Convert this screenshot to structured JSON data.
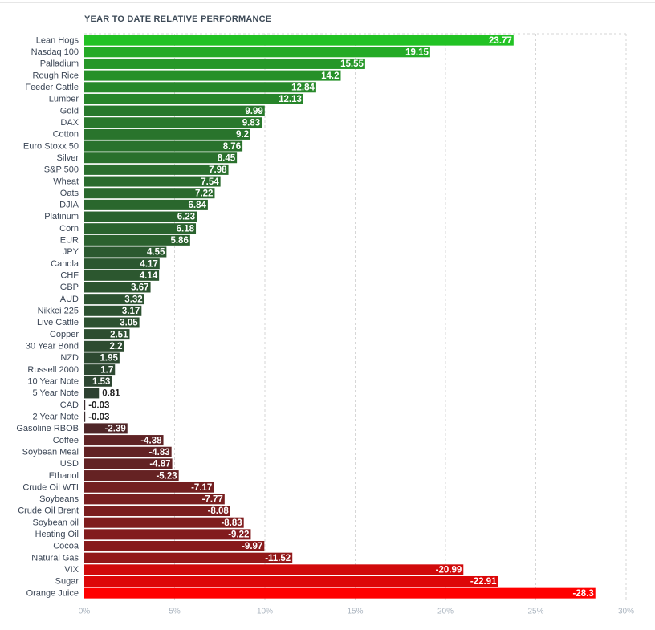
{
  "chart_data": {
    "type": "bar",
    "orientation": "horizontal",
    "title": "YEAR TO DATE RELATIVE PERFORMANCE",
    "categories": [
      "Lean Hogs",
      "Nasdaq 100",
      "Palladium",
      "Rough Rice",
      "Feeder Cattle",
      "Lumber",
      "Gold",
      "DAX",
      "Cotton",
      "Euro Stoxx 50",
      "Silver",
      "S&P 500",
      "Wheat",
      "Oats",
      "DJIA",
      "Platinum",
      "Corn",
      "EUR",
      "JPY",
      "Canola",
      "CHF",
      "GBP",
      "AUD",
      "Nikkei 225",
      "Live Cattle",
      "Copper",
      "30 Year Bond",
      "NZD",
      "Russell 2000",
      "10 Year Note",
      "5 Year Note",
      "CAD",
      "2 Year Note",
      "Gasoline RBOB",
      "Coffee",
      "Soybean Meal",
      "USD",
      "Ethanol",
      "Crude Oil WTI",
      "Soybeans",
      "Crude Oil Brent",
      "Soybean oil",
      "Heating Oil",
      "Cocoa",
      "Natural Gas",
      "VIX",
      "Sugar",
      "Orange Juice"
    ],
    "values": [
      23.77,
      19.15,
      15.55,
      14.2,
      12.84,
      12.13,
      9.99,
      9.83,
      9.2,
      8.76,
      8.45,
      7.98,
      7.54,
      7.22,
      6.84,
      6.23,
      6.18,
      5.86,
      4.55,
      4.17,
      4.14,
      3.67,
      3.32,
      3.17,
      3.05,
      2.51,
      2.2,
      1.95,
      1.7,
      1.53,
      0.81,
      -0.03,
      -0.03,
      -2.39,
      -4.38,
      -4.83,
      -4.87,
      -5.23,
      -7.17,
      -7.77,
      -8.08,
      -8.83,
      -9.22,
      -9.97,
      -11.52,
      -20.99,
      -22.91,
      -28.3
    ],
    "value_labels": [
      "23.77",
      "19.15",
      "15.55",
      "14.2",
      "12.84",
      "12.13",
      "9.99",
      "9.83",
      "9.2",
      "8.76",
      "8.45",
      "7.98",
      "7.54",
      "7.22",
      "6.84",
      "6.23",
      "6.18",
      "5.86",
      "4.55",
      "4.17",
      "4.14",
      "3.67",
      "3.32",
      "3.17",
      "3.05",
      "2.51",
      "2.2",
      "1.95",
      "1.7",
      "1.53",
      "0.81",
      "-0.03",
      "-0.03",
      "-2.39",
      "-4.38",
      "-4.83",
      "-4.87",
      "-5.23",
      "-7.17",
      "-7.77",
      "-8.08",
      "-8.83",
      "-9.22",
      "-9.97",
      "-11.52",
      "-20.99",
      "-22.91",
      "-28.3"
    ],
    "x_ticks": [
      "0%",
      "5%",
      "10%",
      "15%",
      "20%",
      "25%",
      "30%"
    ],
    "xlim": [
      0,
      30
    ],
    "bar_length": "absolute value",
    "grid": true,
    "colors": {
      "positive_high": "#22c224",
      "positive_low": "#2e3b32",
      "negative_low": "#3a2b2d",
      "negative_high": "#ff0000",
      "grid": "#d6d6d6",
      "axis_labels": "#aab4bf"
    }
  }
}
